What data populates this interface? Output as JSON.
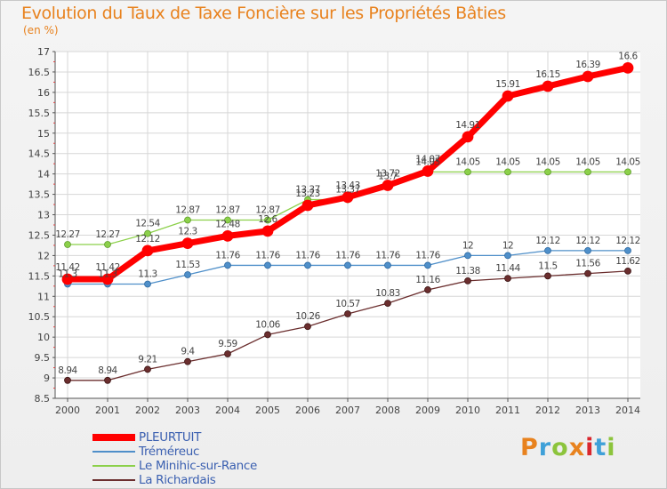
{
  "title": "Evolution du Taux de Taxe Foncière sur les Propriétés Bâties",
  "unit_label": "(en %)",
  "logo": {
    "text": "Proxiti",
    "colors": [
      "#e8821e",
      "#3fa0d8",
      "#8cc43c",
      "#e8821e",
      "#d9262d",
      "#3fa0d8",
      "#8cc43c"
    ]
  },
  "chart_data": {
    "type": "line",
    "title": "Evolution du Taux de Taxe Foncière sur les Propriétés Bâties",
    "ylabel": "(en %)",
    "xlabel": "",
    "x": [
      "2000",
      "2001",
      "2002",
      "2003",
      "2004",
      "2005",
      "2006",
      "2007",
      "2008",
      "2009",
      "2010",
      "2011",
      "2012",
      "2013",
      "2014"
    ],
    "ylim": [
      8.5,
      17
    ],
    "yticks": [
      "8.5",
      "9",
      "9.5",
      "10",
      "10.5",
      "11",
      "11.5",
      "12",
      "12.5",
      "13",
      "13.5",
      "14",
      "14.5",
      "15",
      "15.5",
      "16",
      "16.5",
      "17"
    ],
    "series": [
      {
        "name": "PLEURTUIT",
        "color": "#ff0000",
        "values": [
          11.42,
          11.42,
          12.12,
          12.3,
          12.48,
          12.6,
          13.23,
          13.43,
          13.72,
          14.07,
          14.91,
          15.91,
          16.15,
          16.39,
          16.6
        ],
        "labels": [
          "11.42",
          "11.42",
          "12.12",
          "12.3",
          "12.48",
          "12.6",
          "13.23",
          "13.43",
          "13.72",
          "14.07",
          "14.91",
          "15.91",
          "16.15",
          "16.39",
          "16.6"
        ]
      },
      {
        "name": "Tréméreuc",
        "color": "#4f8fc9",
        "values": [
          11.3,
          11.3,
          11.3,
          11.53,
          11.76,
          11.76,
          11.76,
          11.76,
          11.76,
          11.76,
          12,
          12,
          12.12,
          12.12,
          12.12
        ],
        "labels": [
          "11.3",
          "11.3",
          "11.3",
          "11.53",
          "11.76",
          "11.76",
          "11.76",
          "11.76",
          "11.76",
          "11.76",
          "12",
          "12",
          "12.12",
          "12.12",
          "12.12"
        ]
      },
      {
        "name": "Le Minihic-sur-Rance",
        "color": "#8cd04a",
        "values": [
          12.27,
          12.27,
          12.54,
          12.87,
          12.87,
          12.87,
          13.37,
          13.37,
          13.7,
          14.05,
          14.05,
          14.05,
          14.05,
          14.05,
          14.05
        ],
        "labels": [
          "12.27",
          "12.27",
          "12.54",
          "12.87",
          "12.87",
          "12.87",
          "13.37",
          "13.37",
          "13.7",
          "14.05",
          "14.05",
          "14.05",
          "14.05",
          "14.05",
          "14.05"
        ]
      },
      {
        "name": "La Richardais",
        "color": "#6b2e2e",
        "values": [
          8.94,
          8.94,
          9.21,
          9.4,
          9.59,
          10.06,
          10.26,
          10.57,
          10.83,
          11.16,
          11.38,
          11.44,
          11.5,
          11.56,
          11.62
        ],
        "labels": [
          "8.94",
          "8.94",
          "9.21",
          "9.4",
          "9.59",
          "10.06",
          "10.26",
          "10.57",
          "10.83",
          "11.16",
          "11.38",
          "11.44",
          "11.5",
          "11.56",
          "11.62"
        ]
      }
    ]
  }
}
